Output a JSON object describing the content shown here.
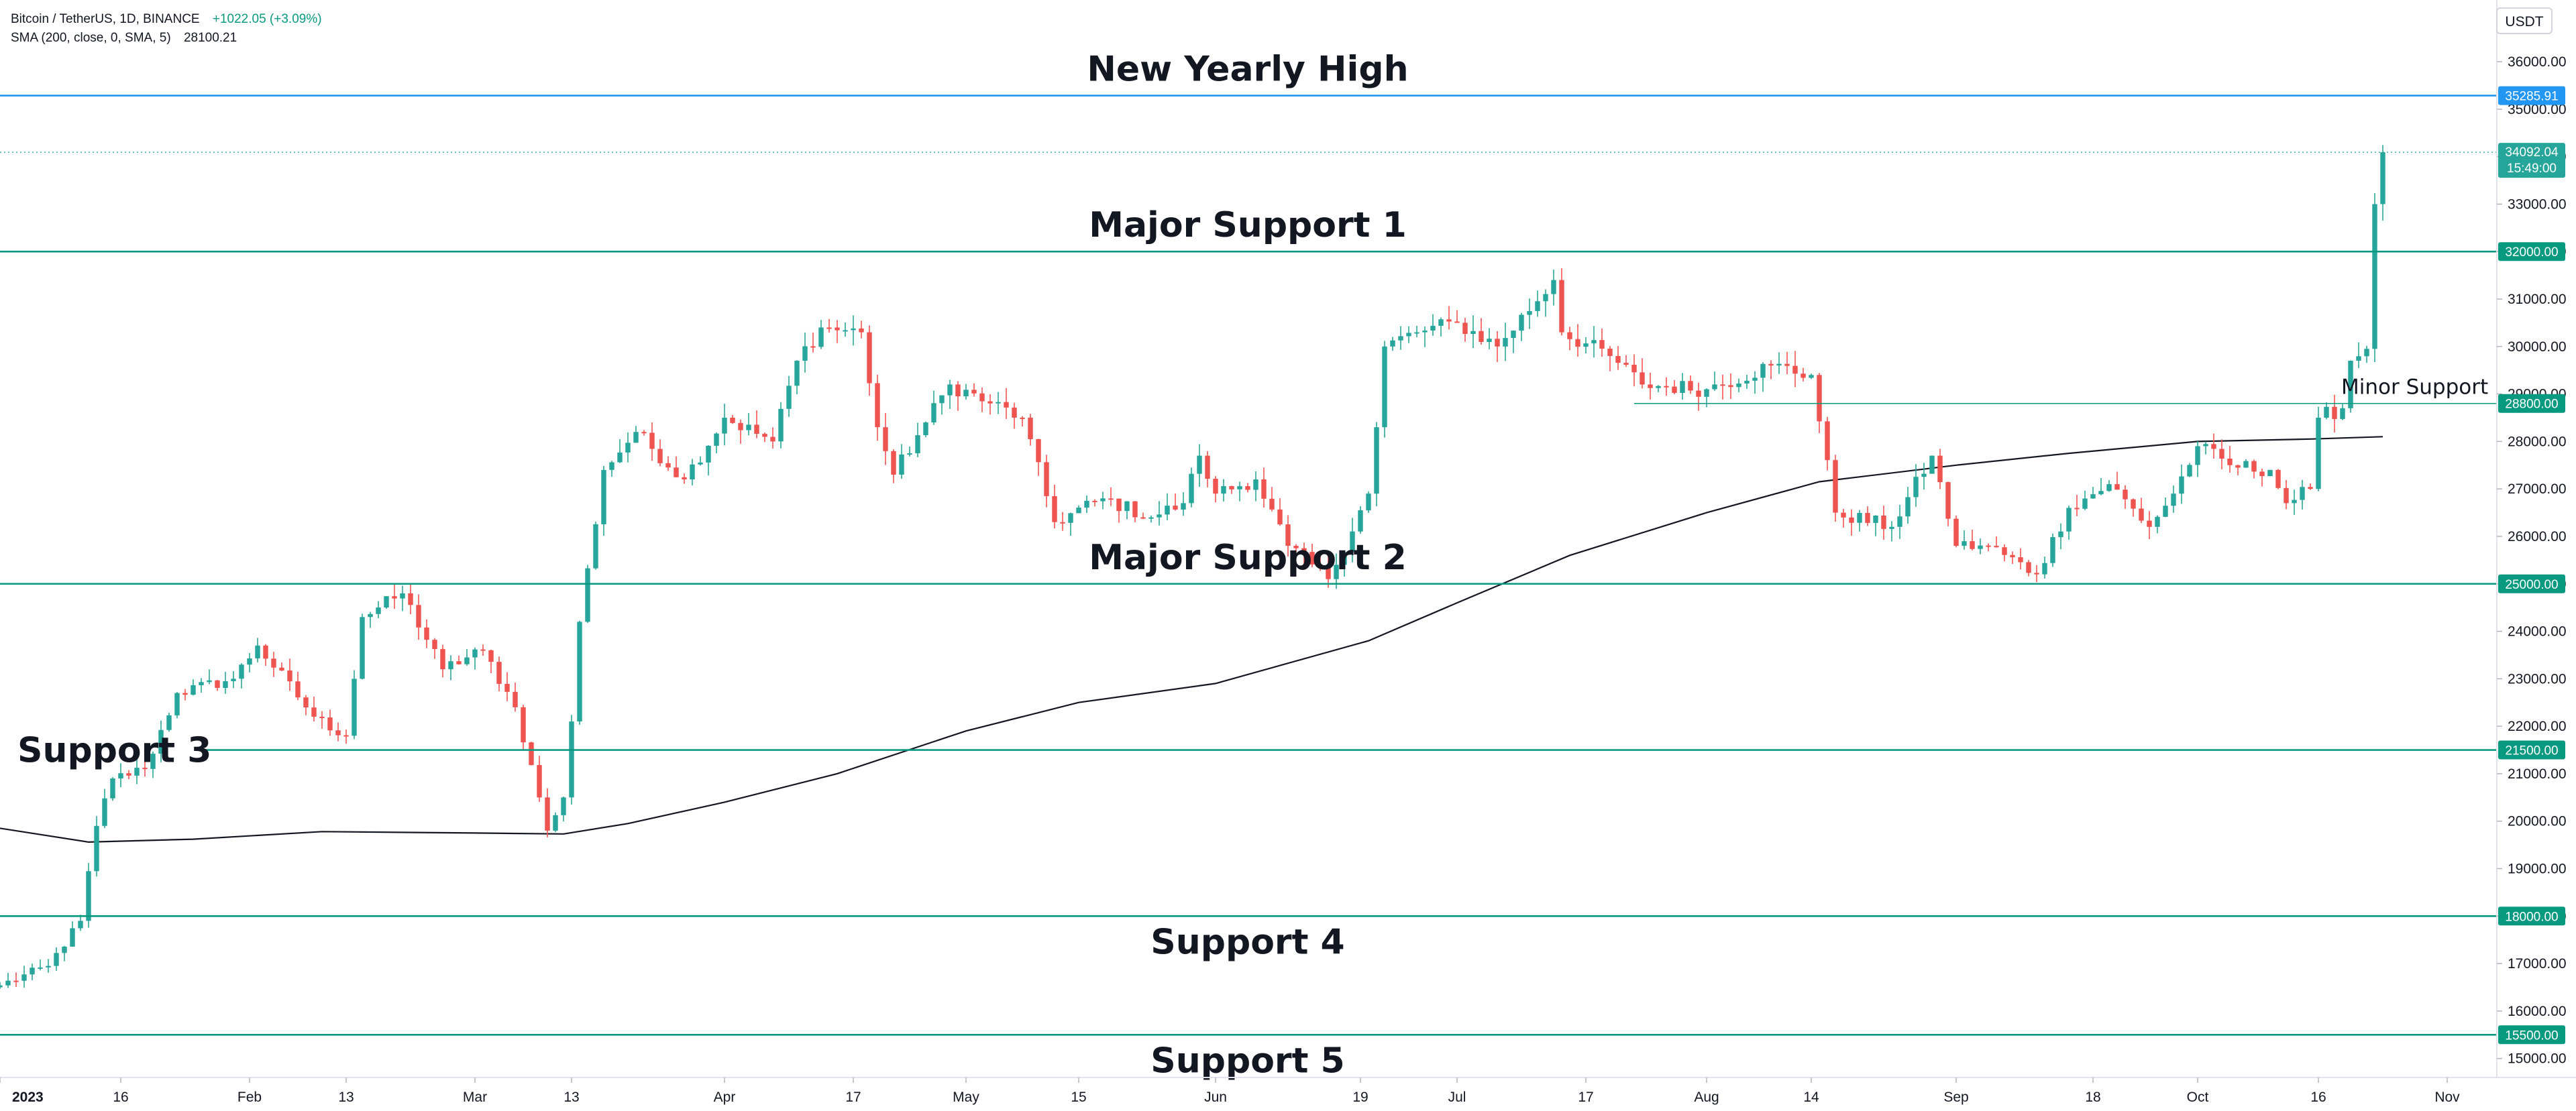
{
  "legend": {
    "symbol": "Bitcoin / TetherUS, 1D, BINANCE",
    "change": "+1022.05 (+3.09%)",
    "indicator": "SMA (200, close, 0, SMA, 5)",
    "indicator_value": "28100.21"
  },
  "currency_button": "USDT",
  "colors": {
    "up": "#26a69a",
    "down": "#ef5350",
    "level": "#089981",
    "high": "#2196f3",
    "sma": "#131722"
  },
  "chart_data": {
    "type": "candlestick",
    "ylim": [
      14600,
      37300
    ],
    "y_ticks": [
      15000,
      16000,
      17000,
      18000,
      19000,
      20000,
      21000,
      22000,
      23000,
      24000,
      25000,
      26000,
      27000,
      28000,
      29000,
      30000,
      31000,
      32000,
      33000,
      34000,
      35000,
      36000
    ],
    "x_range": [
      "2023-01-01",
      "2023-11-07"
    ],
    "x_ticks": [
      {
        "label": "2023",
        "date": "2023-01-01",
        "bold": true
      },
      {
        "label": "16",
        "date": "2023-01-16"
      },
      {
        "label": "Feb",
        "date": "2023-02-01"
      },
      {
        "label": "13",
        "date": "2023-02-13"
      },
      {
        "label": "Mar",
        "date": "2023-03-01"
      },
      {
        "label": "13",
        "date": "2023-03-13"
      },
      {
        "label": "Apr",
        "date": "2023-04-01"
      },
      {
        "label": "17",
        "date": "2023-04-17"
      },
      {
        "label": "May",
        "date": "2023-05-01"
      },
      {
        "label": "15",
        "date": "2023-05-15"
      },
      {
        "label": "Jun",
        "date": "2023-06-01"
      },
      {
        "label": "19",
        "date": "2023-06-19"
      },
      {
        "label": "Jul",
        "date": "2023-07-01"
      },
      {
        "label": "17",
        "date": "2023-07-17"
      },
      {
        "label": "Aug",
        "date": "2023-08-01"
      },
      {
        "label": "14",
        "date": "2023-08-14"
      },
      {
        "label": "Sep",
        "date": "2023-09-01"
      },
      {
        "label": "18",
        "date": "2023-09-18"
      },
      {
        "label": "Oct",
        "date": "2023-10-01"
      },
      {
        "label": "16",
        "date": "2023-10-16"
      },
      {
        "label": "Nov",
        "date": "2023-11-01"
      }
    ],
    "close_path": [
      [
        "2023-01-01",
        16540
      ],
      [
        "2023-01-07",
        16950
      ],
      [
        "2023-01-11",
        17900
      ],
      [
        "2023-01-13",
        19900
      ],
      [
        "2023-01-15",
        20900
      ],
      [
        "2023-01-19",
        21100
      ],
      [
        "2023-01-23",
        22700
      ],
      [
        "2023-01-30",
        23000
      ],
      [
        "2023-02-02",
        23700
      ],
      [
        "2023-02-09",
        22200
      ],
      [
        "2023-02-13",
        21800
      ],
      [
        "2023-02-15",
        24300
      ],
      [
        "2023-02-20",
        24800
      ],
      [
        "2023-02-25",
        23200
      ],
      [
        "2023-03-02",
        23600
      ],
      [
        "2023-03-06",
        22400
      ],
      [
        "2023-03-09",
        20500
      ],
      [
        "2023-03-10",
        19800
      ],
      [
        "2023-03-12",
        20500
      ],
      [
        "2023-03-13",
        22100
      ],
      [
        "2023-03-14",
        24200
      ],
      [
        "2023-03-17",
        27400
      ],
      [
        "2023-03-21",
        28200
      ],
      [
        "2023-03-27",
        27200
      ],
      [
        "2023-04-01",
        28500
      ],
      [
        "2023-04-07",
        28000
      ],
      [
        "2023-04-10",
        29700
      ],
      [
        "2023-04-13",
        30400
      ],
      [
        "2023-04-18",
        30300
      ],
      [
        "2023-04-20",
        28300
      ],
      [
        "2023-04-22",
        27300
      ],
      [
        "2023-04-26",
        28400
      ],
      [
        "2023-04-29",
        29200
      ],
      [
        "2023-05-04",
        28800
      ],
      [
        "2023-05-08",
        28500
      ],
      [
        "2023-05-12",
        26300
      ],
      [
        "2023-05-18",
        26800
      ],
      [
        "2023-05-24",
        26400
      ],
      [
        "2023-05-28",
        26700
      ],
      [
        "2023-05-30",
        27700
      ],
      [
        "2023-06-01",
        26900
      ],
      [
        "2023-06-06",
        27200
      ],
      [
        "2023-06-10",
        25800
      ],
      [
        "2023-06-15",
        25100
      ],
      [
        "2023-06-20",
        26900
      ],
      [
        "2023-06-21",
        28300
      ],
      [
        "2023-06-22",
        30000
      ],
      [
        "2023-06-26",
        30300
      ],
      [
        "2023-07-01",
        30500
      ],
      [
        "2023-07-06",
        30000
      ],
      [
        "2023-07-13",
        31400
      ],
      [
        "2023-07-14",
        30300
      ],
      [
        "2023-07-20",
        29800
      ],
      [
        "2023-07-24",
        29200
      ],
      [
        "2023-08-01",
        29100
      ],
      [
        "2023-08-09",
        29600
      ],
      [
        "2023-08-14",
        29400
      ],
      [
        "2023-08-17",
        26500
      ],
      [
        "2023-08-24",
        26200
      ],
      [
        "2023-08-29",
        27700
      ],
      [
        "2023-09-01",
        25800
      ],
      [
        "2023-09-05",
        25800
      ],
      [
        "2023-09-11",
        25200
      ],
      [
        "2023-09-15",
        26600
      ],
      [
        "2023-09-20",
        27100
      ],
      [
        "2023-09-25",
        26200
      ],
      [
        "2023-09-28",
        26900
      ],
      [
        "2023-10-01",
        27900
      ],
      [
        "2023-10-05",
        27500
      ],
      [
        "2023-10-10",
        27400
      ],
      [
        "2023-10-12",
        26700
      ],
      [
        "2023-10-15",
        27000
      ],
      [
        "2023-10-16",
        28500
      ],
      [
        "2023-10-19",
        28700
      ],
      [
        "2023-10-20",
        29700
      ],
      [
        "2023-10-22",
        29950
      ],
      [
        "2023-10-23",
        33000
      ],
      [
        "2023-10-24",
        34092
      ]
    ],
    "sma_200": [
      [
        "2023-01-01",
        19850
      ],
      [
        "2023-01-12",
        19560
      ],
      [
        "2023-01-25",
        19620
      ],
      [
        "2023-02-10",
        19780
      ],
      [
        "2023-03-01",
        19750
      ],
      [
        "2023-03-12",
        19730
      ],
      [
        "2023-03-20",
        19950
      ],
      [
        "2023-04-01",
        20400
      ],
      [
        "2023-04-15",
        21000
      ],
      [
        "2023-05-01",
        21900
      ],
      [
        "2023-05-15",
        22500
      ],
      [
        "2023-06-01",
        22900
      ],
      [
        "2023-06-20",
        23800
      ],
      [
        "2023-07-01",
        24600
      ],
      [
        "2023-07-15",
        25600
      ],
      [
        "2023-08-01",
        26500
      ],
      [
        "2023-08-15",
        27150
      ],
      [
        "2023-09-01",
        27500
      ],
      [
        "2023-09-15",
        27750
      ],
      [
        "2023-10-01",
        28000
      ],
      [
        "2023-10-15",
        28050
      ],
      [
        "2023-10-24",
        28100
      ]
    ],
    "levels": [
      {
        "label": "New Yearly High",
        "value": 35285.91,
        "tag": "35285.91",
        "kind": "high"
      },
      {
        "label": "Major Support 1",
        "value": 32000,
        "tag": "32000.00",
        "kind": "support"
      },
      {
        "label": "Minor Support",
        "value": 28800,
        "tag": "28800.00",
        "kind": "minor",
        "start": "2023-07-23"
      },
      {
        "label": "Major Support 2",
        "value": 25000,
        "tag": "25000.00",
        "kind": "support"
      },
      {
        "label": "Support 3",
        "value": 21500,
        "tag": "21500.00",
        "kind": "support"
      },
      {
        "label": "Support 4",
        "value": 18000,
        "tag": "18000.00",
        "kind": "support"
      },
      {
        "label": "Support 5",
        "value": 15500,
        "tag": "15500.00",
        "kind": "support"
      }
    ],
    "last_price": {
      "value": 34092.04,
      "label": "34092.04",
      "countdown": "15:49:00"
    }
  }
}
